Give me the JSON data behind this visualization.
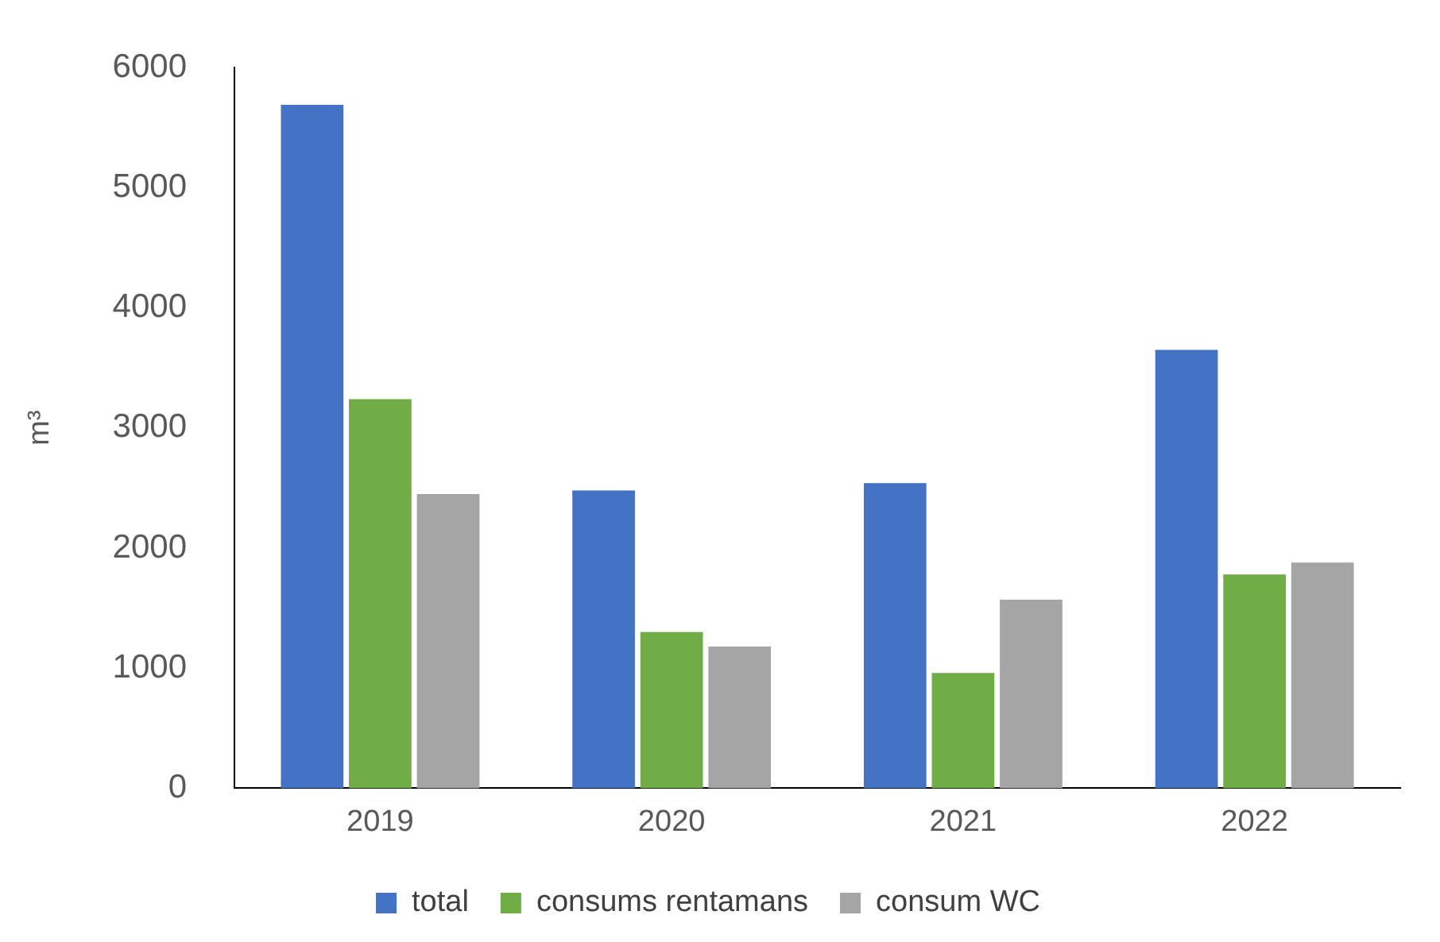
{
  "chart_data": {
    "type": "bar",
    "ylabel": "m³",
    "categories": [
      "2019",
      "2020",
      "2021",
      "2022"
    ],
    "series": [
      {
        "name": "total",
        "color": "#4472c4",
        "values": [
          5690,
          2480,
          2540,
          3650
        ]
      },
      {
        "name": "consums rentamans",
        "color": "#70ad47",
        "values": [
          3240,
          1300,
          960,
          1780
        ]
      },
      {
        "name": "consum WC",
        "color": "#a5a5a5",
        "values": [
          2450,
          1180,
          1570,
          1880
        ]
      }
    ],
    "ylim": [
      0,
      6000
    ],
    "yticks": [
      0,
      1000,
      2000,
      3000,
      4000,
      5000,
      6000
    ],
    "grid": false,
    "legend": "bottom"
  }
}
